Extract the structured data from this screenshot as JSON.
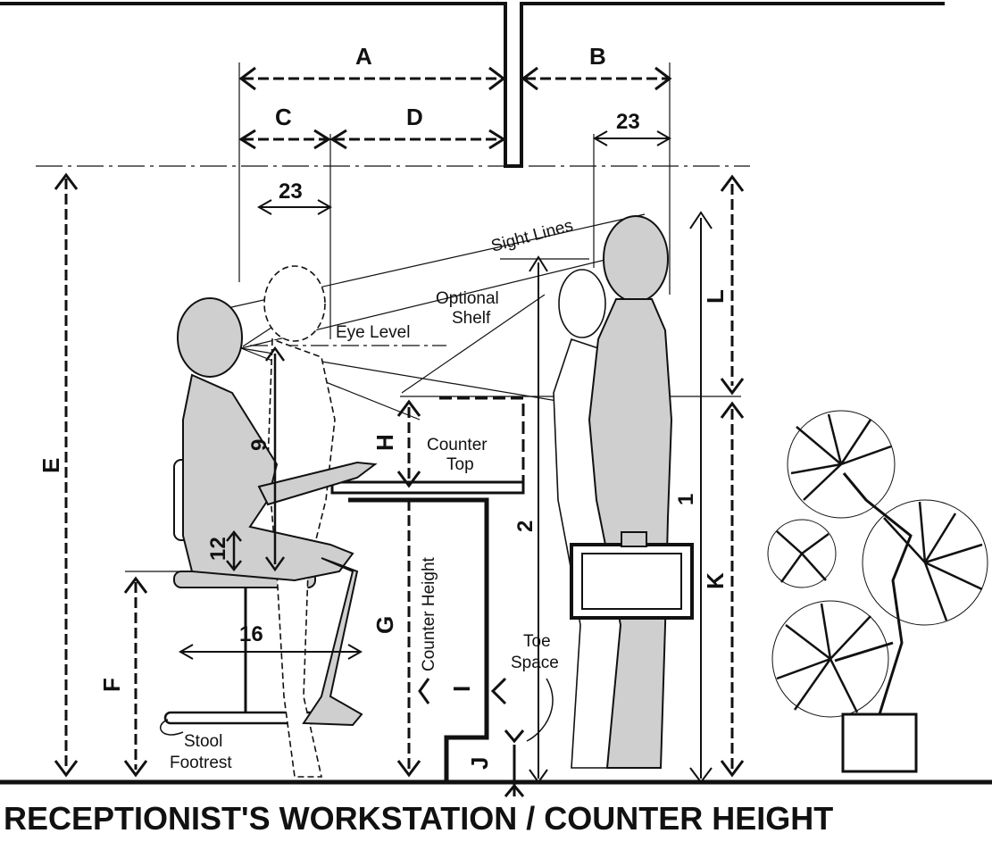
{
  "title": "RECEPTIONIST'S WORKSTATION / COUNTER HEIGHT",
  "dimension_letters": {
    "a": "A",
    "b": "B",
    "c": "C",
    "d": "D",
    "e": "E",
    "f": "F",
    "g": "G",
    "h": "H",
    "i": "I",
    "j": "J",
    "k": "K",
    "l": "L"
  },
  "dimension_numbers": {
    "n23_top_right": "23",
    "n23_seated": "23",
    "n12": "12",
    "n16": "16",
    "n9": "9",
    "n2": "2",
    "n1": "1"
  },
  "annotations": {
    "sight_lines": "Sight Lines",
    "optional_shelf_1": "Optional",
    "optional_shelf_2": "Shelf",
    "eye_level": "Eye Level",
    "counter_top_1": "Counter",
    "counter_top_2": "Top",
    "counter_height": "Counter Height",
    "toe_space_1": "Toe",
    "toe_space_2": "Space",
    "stool_footrest_1": "Stool",
    "stool_footrest_2": "Footrest"
  }
}
